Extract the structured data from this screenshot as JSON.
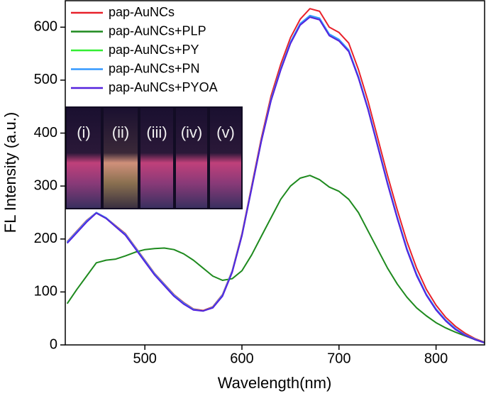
{
  "chart_data": {
    "type": "line",
    "xlabel": "Wavelength(nm)",
    "ylabel": "FL Intensity (a.u.)",
    "x": [
      420,
      430,
      440,
      450,
      460,
      470,
      480,
      490,
      500,
      510,
      520,
      530,
      540,
      550,
      560,
      570,
      580,
      590,
      600,
      610,
      620,
      630,
      640,
      650,
      660,
      670,
      680,
      690,
      700,
      710,
      720,
      730,
      740,
      750,
      760,
      770,
      780,
      790,
      800,
      810,
      820,
      830,
      840,
      850
    ],
    "series": [
      {
        "name": "pap-AuNCs",
        "color": "#e8212b",
        "values": [
          195,
          215,
          235,
          250,
          240,
          225,
          210,
          185,
          160,
          135,
          115,
          95,
          80,
          68,
          65,
          72,
          95,
          140,
          210,
          300,
          390,
          470,
          530,
          580,
          615,
          635,
          630,
          600,
          590,
          570,
          520,
          460,
          390,
          320,
          255,
          195,
          145,
          105,
          75,
          52,
          35,
          22,
          12,
          5
        ]
      },
      {
        "name": "pap-AuNCs+PLP",
        "color": "#1e8a1e",
        "values": [
          78,
          105,
          130,
          155,
          160,
          162,
          168,
          175,
          180,
          182,
          183,
          180,
          172,
          160,
          145,
          130,
          122,
          125,
          140,
          170,
          205,
          240,
          275,
          300,
          315,
          320,
          312,
          298,
          290,
          275,
          250,
          215,
          180,
          145,
          115,
          90,
          70,
          55,
          42,
          32,
          24,
          17,
          10,
          5
        ]
      },
      {
        "name": "pap-AuNCs+PY",
        "color": "#33ee33",
        "values": [
          193,
          213,
          233,
          249,
          239,
          224,
          208,
          183,
          158,
          133,
          113,
          93,
          78,
          67,
          64,
          71,
          93,
          138,
          207,
          296,
          385,
          462,
          520,
          570,
          605,
          620,
          615,
          585,
          575,
          555,
          505,
          445,
          375,
          305,
          240,
          180,
          132,
          95,
          67,
          46,
          30,
          18,
          10,
          4
        ]
      },
      {
        "name": "pap-AuNCs+PN",
        "color": "#3399ff",
        "values": [
          194,
          214,
          234,
          250,
          240,
          224,
          209,
          184,
          159,
          134,
          114,
          94,
          79,
          67,
          64,
          71,
          94,
          139,
          208,
          297,
          386,
          464,
          522,
          572,
          607,
          622,
          617,
          587,
          577,
          557,
          507,
          447,
          377,
          307,
          242,
          182,
          134,
          96,
          68,
          47,
          31,
          19,
          11,
          4
        ]
      },
      {
        "name": "pap-AuNCs+PYOA",
        "color": "#5522dd",
        "values": [
          192,
          212,
          232,
          249,
          239,
          223,
          207,
          182,
          157,
          132,
          112,
          92,
          77,
          66,
          64,
          70,
          92,
          137,
          206,
          295,
          384,
          461,
          519,
          569,
          604,
          619,
          614,
          584,
          574,
          554,
          504,
          444,
          374,
          304,
          239,
          179,
          131,
          94,
          66,
          45,
          29,
          18,
          10,
          4
        ]
      }
    ],
    "xlim": [
      418,
      850
    ],
    "ylim": [
      0,
      650
    ],
    "xticks": [
      500,
      600,
      700,
      800
    ],
    "yticks": [
      0,
      100,
      200,
      300,
      400,
      500,
      600
    ],
    "legend": "upper-left",
    "inset_labels": [
      "(i)",
      "(ii)",
      "(iii)",
      "(iv)",
      "(v)"
    ]
  }
}
